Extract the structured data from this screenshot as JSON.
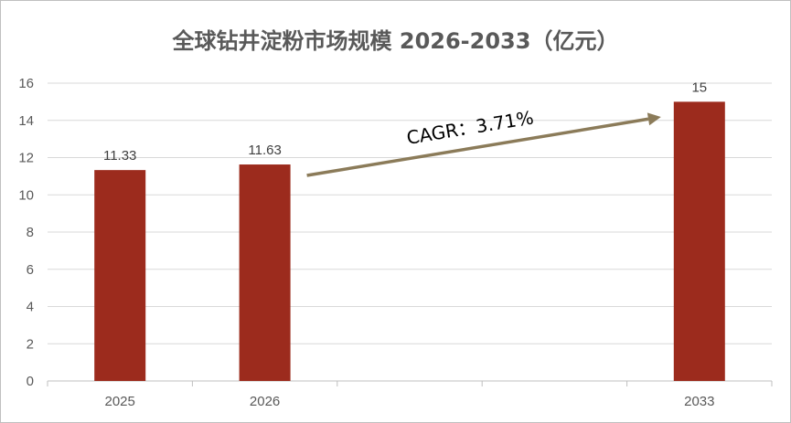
{
  "chart_data": {
    "type": "bar",
    "title": "全球钻井淀粉市场规模 2026-2033（亿元）",
    "slots": [
      "2025",
      "2026",
      "",
      "",
      "2033"
    ],
    "categories": [
      "2025",
      "2026",
      "2033"
    ],
    "values": [
      11.33,
      11.63,
      15
    ],
    "data_labels": [
      "11.33",
      "11.63",
      "15"
    ],
    "ylim": [
      0,
      16
    ],
    "yticks": [
      0,
      2,
      4,
      6,
      8,
      10,
      12,
      14,
      16
    ],
    "grid": true,
    "legend": "none",
    "bar_color": "#9c2b1d",
    "annotation": {
      "text": "CAGR：3.71%",
      "arrow_from": "2026",
      "arrow_to": "2033",
      "arrow_color": "#8b7b59"
    }
  }
}
